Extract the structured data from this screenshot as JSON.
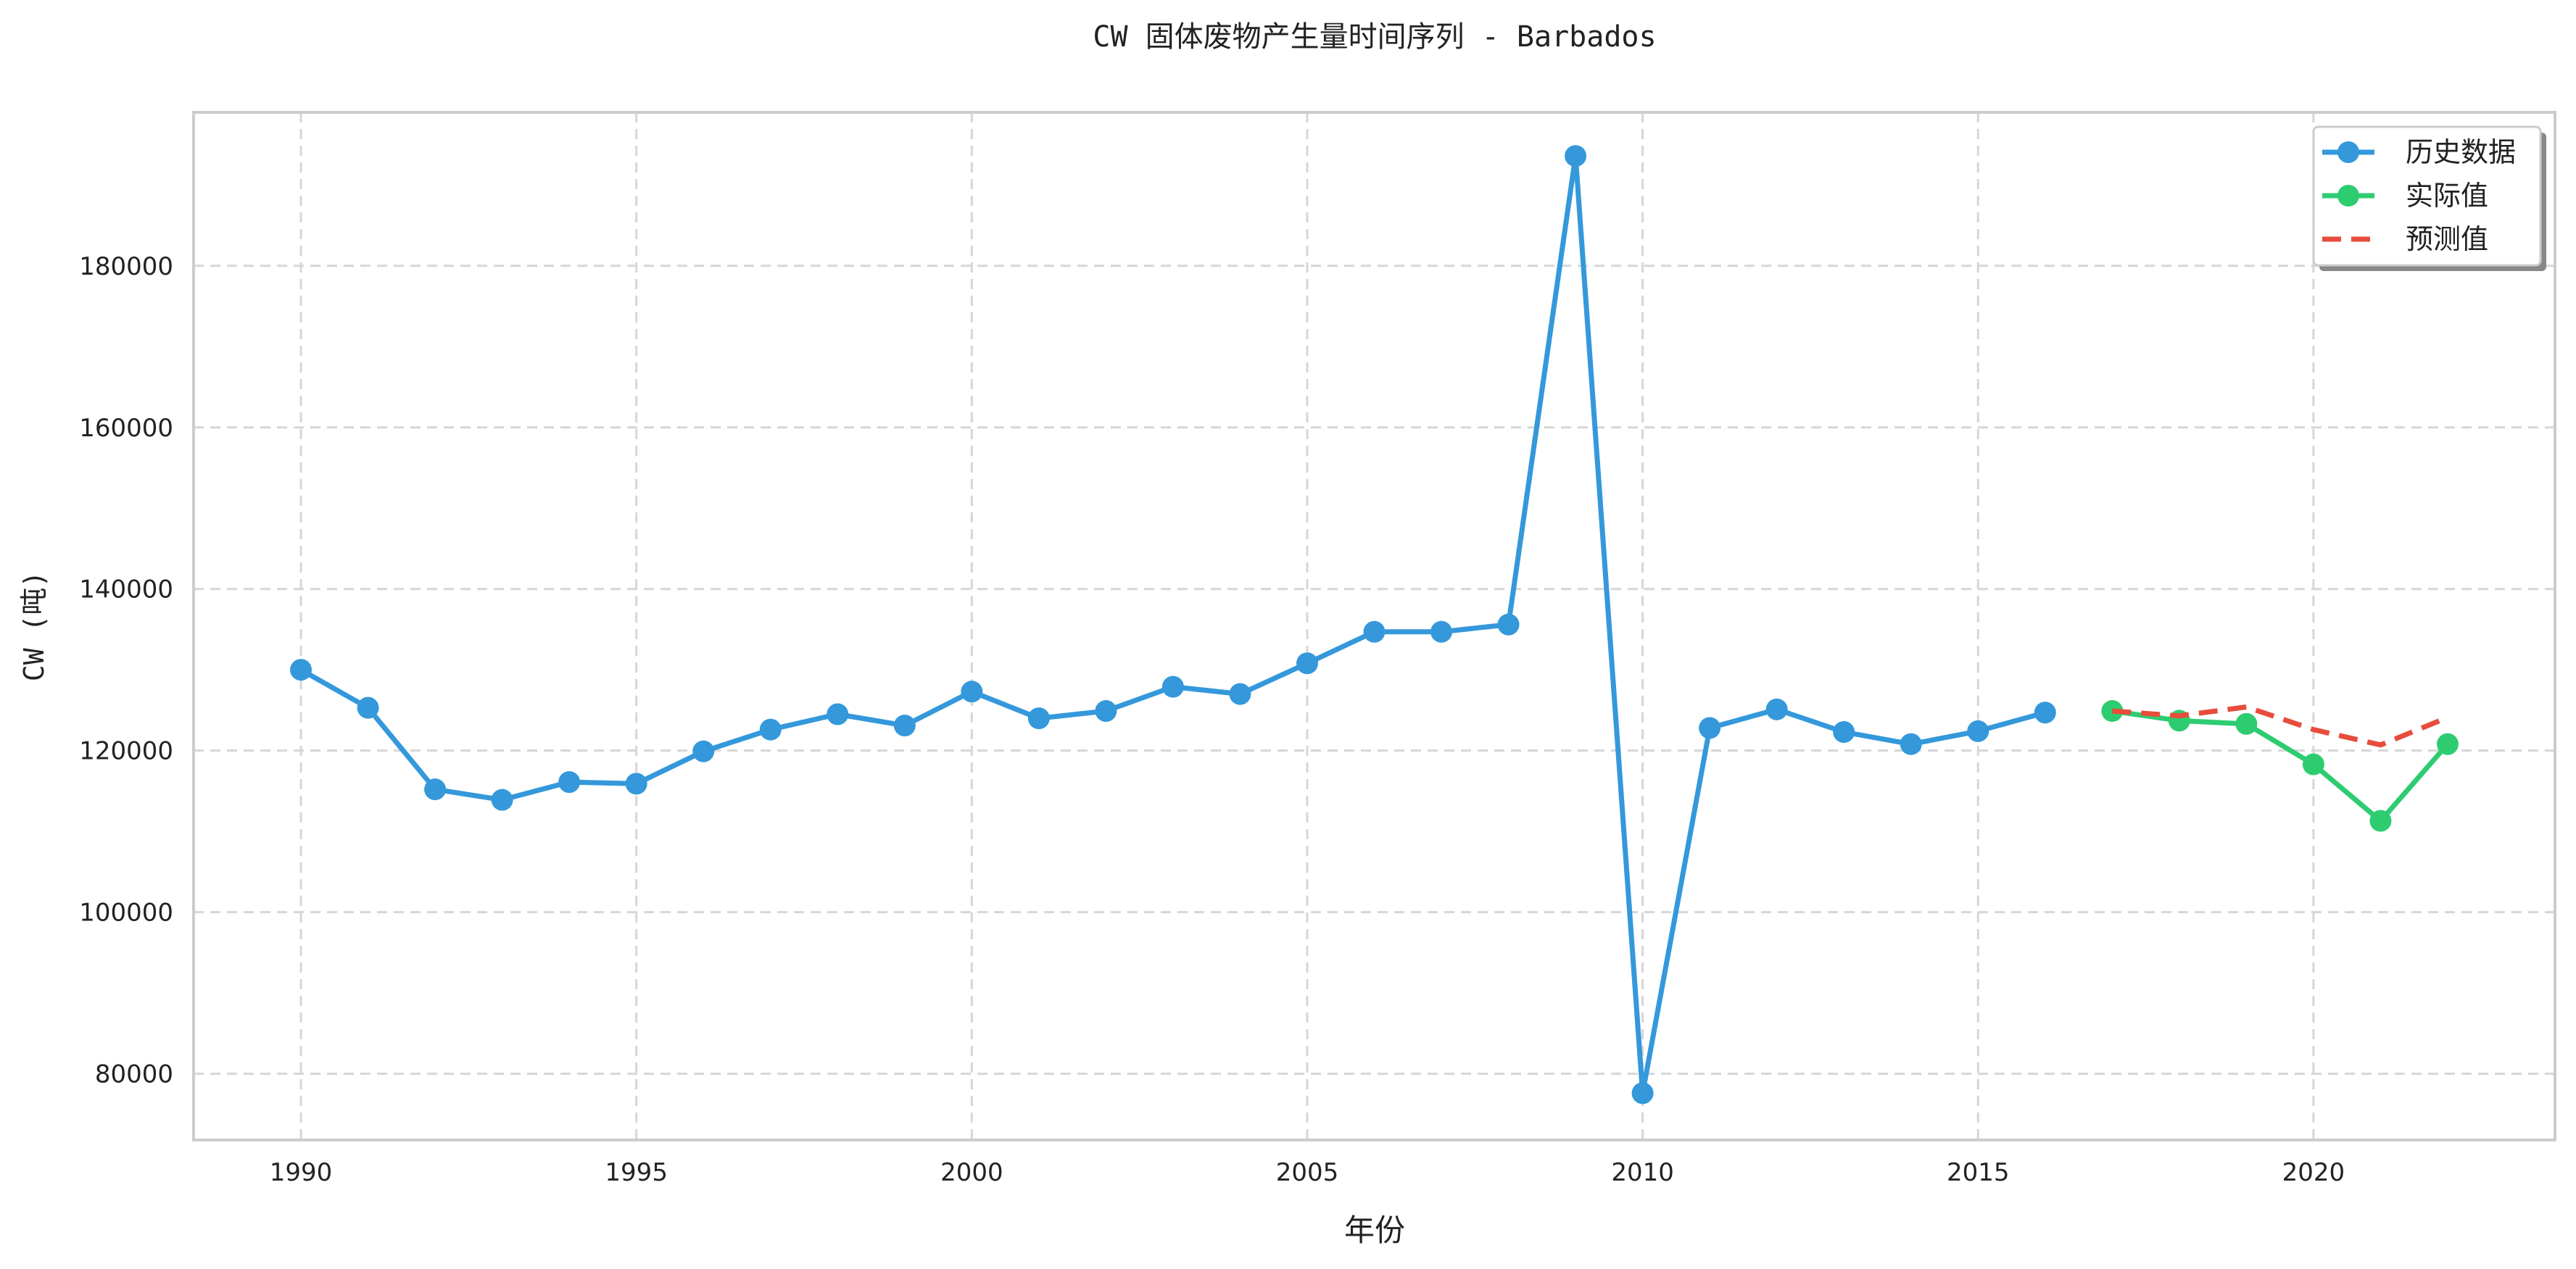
{
  "chart_data": {
    "type": "line",
    "title": "CW 固体废物产生量时间序列 - Barbados",
    "xlabel": "年份",
    "ylabel": "CW (吨)",
    "xlim": [
      1988.4,
      2023.6
    ],
    "ylim": [
      71800,
      199000
    ],
    "x_ticks": [
      1990,
      1995,
      2000,
      2005,
      2010,
      2015,
      2020
    ],
    "y_ticks": [
      80000,
      100000,
      120000,
      140000,
      160000,
      180000
    ],
    "grid": true,
    "legend_position": "top-right",
    "series": [
      {
        "name": "历史数据",
        "color": "#3498db",
        "style": "solid-marker",
        "x": [
          1990,
          1991,
          1992,
          1993,
          1994,
          1995,
          1996,
          1997,
          1998,
          1999,
          2000,
          2001,
          2002,
          2003,
          2004,
          2005,
          2006,
          2007,
          2008,
          2009,
          2010,
          2011,
          2012,
          2013,
          2014,
          2015,
          2016
        ],
        "y": [
          130000,
          125300,
          115200,
          113900,
          116100,
          115900,
          119900,
          122600,
          124500,
          123100,
          127300,
          124000,
          124900,
          127900,
          127000,
          130800,
          134700,
          134700,
          135600,
          193600,
          77600,
          122800,
          125100,
          122300,
          120800,
          122400,
          124700
        ]
      },
      {
        "name": "实际值",
        "color": "#2ecc71",
        "style": "solid-marker",
        "x": [
          2017,
          2018,
          2019,
          2020,
          2021,
          2022
        ],
        "y": [
          124900,
          123700,
          123300,
          118300,
          111300,
          120800
        ]
      },
      {
        "name": "预测值",
        "color": "#e74c3c",
        "style": "dashed",
        "x": [
          2017,
          2018,
          2019,
          2020,
          2021,
          2022
        ],
        "y": [
          124900,
          124300,
          125400,
          122600,
          120700,
          124100
        ]
      }
    ]
  }
}
